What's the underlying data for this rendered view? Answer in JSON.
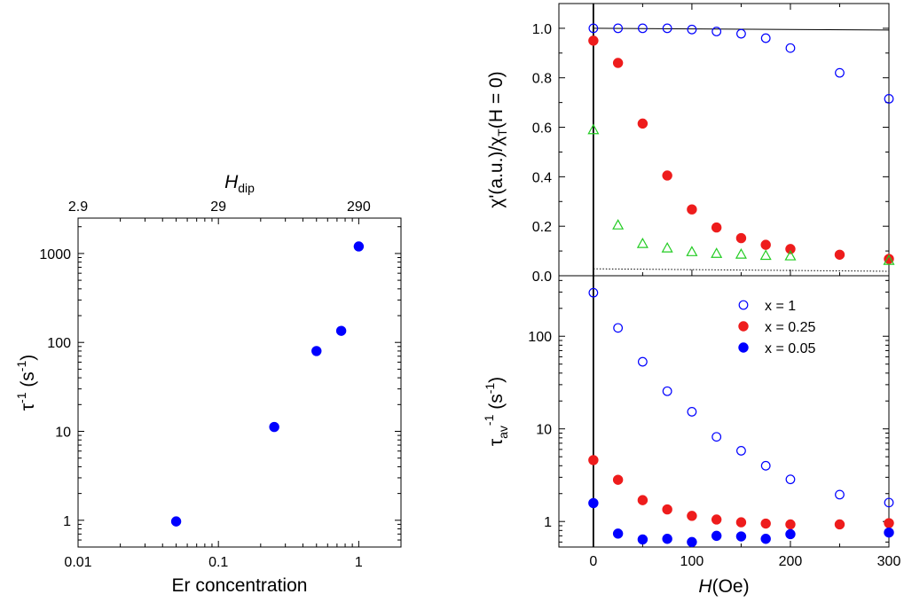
{
  "chart_data": [
    {
      "id": "left",
      "type": "scatter",
      "title": "",
      "xlabel": "Er concentration",
      "ylabel": "τ⁻¹ (s⁻¹)",
      "top_axis_label": "H_dip",
      "x_scale": "log",
      "y_scale": "log",
      "xlim": [
        0.01,
        2
      ],
      "ylim": [
        0.5,
        2500
      ],
      "x_tick_labels": [
        "0.01",
        "0.1",
        "1"
      ],
      "y_tick_labels": [
        "1",
        "10",
        "100",
        "1000"
      ],
      "top_tick_labels": [
        "2.9",
        "29",
        "290"
      ],
      "grid": false,
      "series": [
        {
          "color": "#0000ff",
          "marker": "filled-circle",
          "x": [
            0.05,
            0.25,
            0.5,
            0.75,
            1.0
          ],
          "y": [
            0.97,
            11.2,
            80,
            135,
            1200
          ]
        }
      ]
    },
    {
      "id": "right-top",
      "type": "scatter",
      "ylabel": "χ'(a.u.)/χ_T(H = 0)",
      "xlim": [
        -35,
        300
      ],
      "ylim": [
        0,
        1.1
      ],
      "y_tick_labels": [
        "0.0",
        "0.2",
        "0.4",
        "0.6",
        "0.8",
        "1.0"
      ],
      "grid": false,
      "series": [
        {
          "color": "#0000ff",
          "marker": "open-circle",
          "x": [
            0,
            25,
            50,
            75,
            100,
            125,
            150,
            175,
            200,
            250,
            300
          ],
          "y": [
            1.0,
            1.0,
            1.0,
            1.0,
            0.995,
            0.987,
            0.978,
            0.96,
            0.92,
            0.82,
            0.715
          ]
        },
        {
          "color": "#ee1c1c",
          "marker": "filled-circle",
          "x": [
            0,
            25,
            50,
            75,
            100,
            125,
            150,
            175,
            200,
            250,
            300
          ],
          "y": [
            0.95,
            0.86,
            0.615,
            0.405,
            0.268,
            0.195,
            0.152,
            0.125,
            0.108,
            0.085,
            0.068
          ]
        },
        {
          "color": "#22cc22",
          "marker": "open-triangle",
          "x": [
            0,
            25,
            50,
            75,
            100,
            125,
            150,
            175,
            200,
            300
          ],
          "y": [
            0.59,
            0.205,
            0.13,
            0.112,
            0.097,
            0.09,
            0.087,
            0.082,
            0.08,
            0.062
          ]
        }
      ],
      "lines": [
        {
          "style": "solid",
          "color": "#000000",
          "x": [
            0,
            300
          ],
          "y": [
            1.0,
            0.993
          ]
        },
        {
          "style": "dotted",
          "color": "#000000",
          "x": [
            0,
            300
          ],
          "y": [
            0.028,
            0.018
          ]
        }
      ]
    },
    {
      "id": "right-bottom",
      "type": "scatter",
      "xlabel": "H(Oe)",
      "ylabel": "τ_av⁻¹ (s⁻¹)",
      "x_scale": "linear",
      "y_scale": "log",
      "xlim": [
        -35,
        300
      ],
      "ylim": [
        0.53,
        450
      ],
      "x_tick_labels": [
        "0",
        "100",
        "200",
        "300"
      ],
      "y_tick_labels": [
        "1",
        "10",
        "100"
      ],
      "grid": false,
      "legend": {
        "placement": "top-right",
        "entries": [
          "x = 1",
          "x = 0.25",
          "x = 0.05"
        ]
      },
      "series": [
        {
          "name": "x = 1",
          "color": "#0000ff",
          "marker": "open-circle",
          "x": [
            0,
            25,
            50,
            75,
            100,
            125,
            150,
            175,
            200,
            250,
            300
          ],
          "y": [
            295,
            123,
            53,
            25.5,
            15.3,
            8.2,
            5.8,
            4.0,
            2.85,
            1.95,
            1.6
          ]
        },
        {
          "name": "x = 0.25",
          "color": "#ee1c1c",
          "marker": "filled-circle",
          "x": [
            0,
            25,
            50,
            75,
            100,
            125,
            150,
            175,
            200,
            250,
            300
          ],
          "y": [
            4.6,
            2.82,
            1.7,
            1.35,
            1.15,
            1.05,
            0.98,
            0.95,
            0.93,
            0.93,
            0.96
          ]
        },
        {
          "name": "x = 0.05",
          "color": "#0000ff",
          "marker": "filled-circle",
          "x": [
            0,
            25,
            50,
            75,
            100,
            125,
            150,
            175,
            200,
            300
          ],
          "y": [
            1.58,
            0.74,
            0.64,
            0.65,
            0.6,
            0.7,
            0.69,
            0.65,
            0.73,
            0.76
          ]
        }
      ]
    }
  ]
}
